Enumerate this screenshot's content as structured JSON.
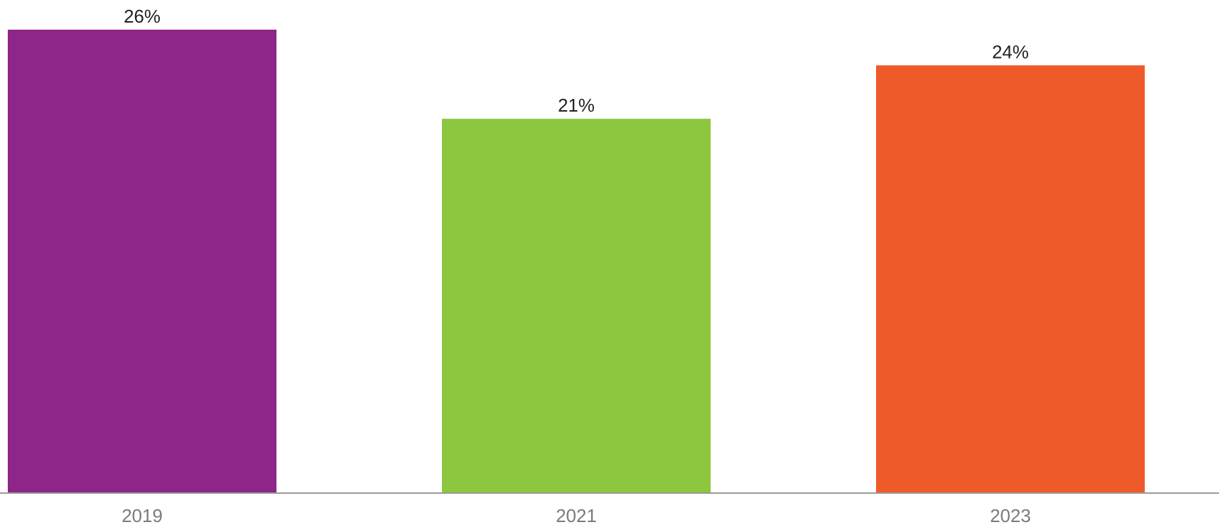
{
  "chart_data": {
    "type": "bar",
    "categories": [
      "2019",
      "2021",
      "2023"
    ],
    "values": [
      26,
      21,
      24
    ],
    "value_labels": [
      "26%",
      "21%",
      "24%"
    ],
    "colors": [
      "#8E2589",
      "#8DC63F",
      "#EF5A2A"
    ],
    "title": "",
    "xlabel": "",
    "ylabel": "",
    "unit": "%",
    "ylim": [
      0,
      26
    ],
    "grid": false,
    "legend": "none"
  }
}
